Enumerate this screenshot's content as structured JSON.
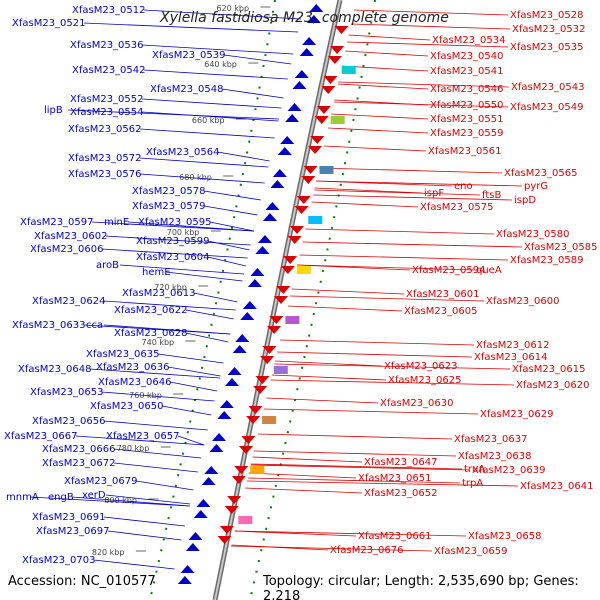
{
  "title": "Xylella fastidiosa M23, complete genome",
  "footer": {
    "accession_label": "Accession:",
    "accession": "NC_010577",
    "topology_label": "Topology:",
    "topology": "circular;",
    "length_label": "Length:",
    "length": "2,535,690 bp;",
    "genes_label": "Genes:",
    "genes": "2,218"
  },
  "colors": {
    "forward": "#0000cc",
    "reverse": "#dd0000",
    "backbone": "#888888",
    "tick": "#008000"
  },
  "ticks": [
    "620 kbp",
    "640 kbp",
    "660 kbp",
    "680 kbp",
    "700 kbp",
    "720 kbp",
    "740 kbp",
    "760 kbp",
    "780 kbp",
    "800 kbp",
    "820 kbp"
  ],
  "forward_genes": [
    "XfasM23_0512",
    "XfasM23_0521",
    "XfasM23_0536",
    "XfasM23_0539",
    "XfasM23_0542",
    "XfasM23_0548",
    "XfasM23_0552",
    "lipB",
    "XfasM23_0554",
    "XfasM23_0562",
    "XfasM23_0564",
    "XfasM23_0572",
    "XfasM23_0576",
    "XfasM23_0578",
    "XfasM23_0579",
    "XfasM23_0597",
    "minE",
    "XfasM23_0595",
    "XfasM23_0602",
    "XfasM23_0599",
    "XfasM23_0606",
    "XfasM23_0604",
    "aroB",
    "hemE",
    "XfasM23_0613",
    "XfasM23_0624",
    "XfasM23_0622",
    "XfasM23_0633",
    "cca",
    "XfasM23_0628",
    "XfasM23_0635",
    "XfasM23_0648",
    "XfasM23_0636",
    "XfasM23_0646",
    "XfasM23_0653",
    "XfasM23_0650",
    "XfasM23_0656",
    "XfasM23_0667",
    "XfasM23_0657",
    "XfasM23_0666",
    "XfasM23_0672",
    "XfasM23_0679",
    "mnmA",
    "engB",
    "xerD",
    "XfasM23_0691",
    "XfasM23_0697",
    "XfasM23_0703"
  ],
  "reverse_genes": [
    "XfasM23_0528",
    "XfasM23_0532",
    "XfasM23_0534",
    "XfasM23_0535",
    "XfasM23_0540",
    "XfasM23_0541",
    "XfasM23_0543",
    "XfasM23_0546",
    "XfasM23_0550",
    "XfasM23_0549",
    "XfasM23_0551",
    "XfasM23_0559",
    "XfasM23_0561",
    "XfasM23_0565",
    "pyrG",
    "eno",
    "ispF",
    "ftsB",
    "ispD",
    "XfasM23_0575",
    "XfasM23_0580",
    "XfasM23_0585",
    "XfasM23_0589",
    "XfasM23_0594",
    "queA",
    "XfasM23_0601",
    "XfasM23_0600",
    "XfasM23_0605",
    "XfasM23_0612",
    "XfasM23_0614",
    "XfasM23_0615",
    "XfasM23_0623",
    "XfasM23_0620",
    "XfasM23_0625",
    "XfasM23_0630",
    "XfasM23_0629",
    "XfasM23_0637",
    "XfasM23_0638",
    "XfasM23_0647",
    "truA",
    "XfasM23_0639",
    "XfasM23_0651",
    "trpA",
    "XfasM23_0641",
    "XfasM23_0652",
    "XfasM23_0661",
    "XfasM23_0658",
    "XfasM23_0676",
    "XfasM23_0659"
  ]
}
